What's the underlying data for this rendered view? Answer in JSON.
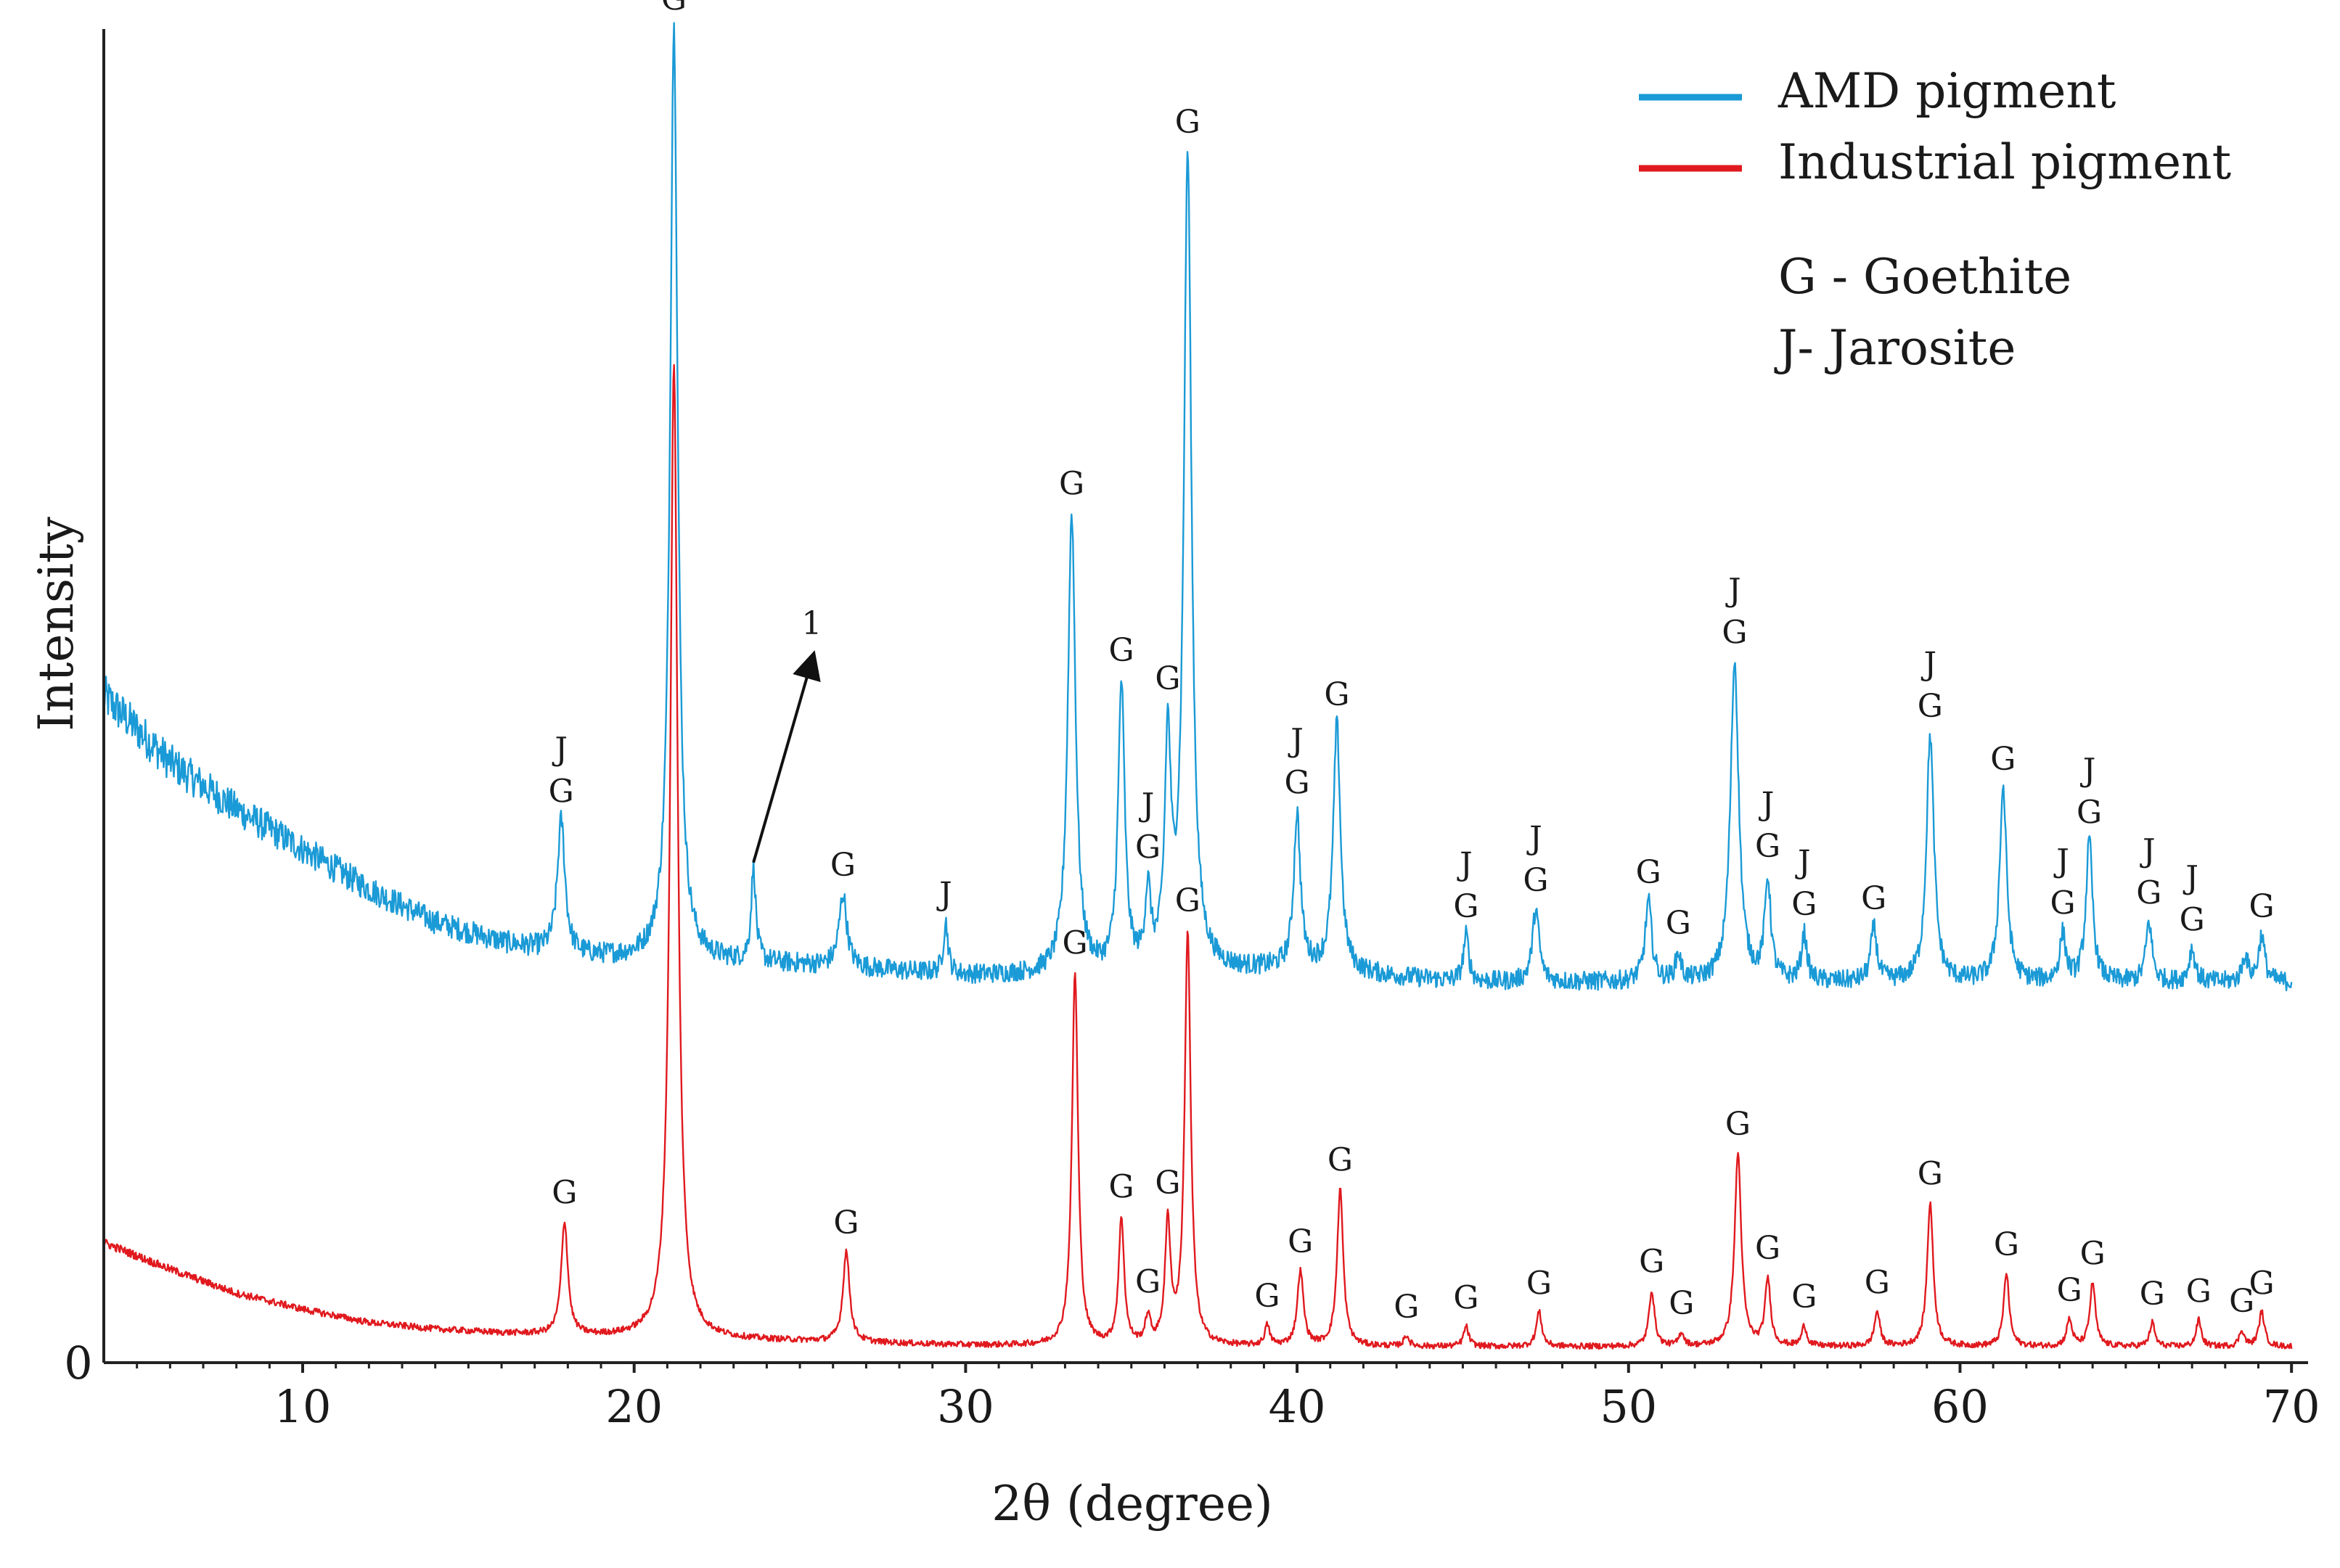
{
  "chart_data": {
    "type": "line",
    "title": "",
    "xlabel": "2θ (degree)",
    "ylabel": "Intensity",
    "xlim": [
      4,
      70.5
    ],
    "ylim": [
      0,
      100
    ],
    "x_ticks": [
      10,
      20,
      30,
      40,
      50,
      60,
      70
    ],
    "y_tick_labels": [
      {
        "value": 0,
        "label": "0"
      }
    ],
    "legend_position": "top-right",
    "legend": [
      {
        "series": "AMD pigment",
        "label": "AMD pigment",
        "color": "#1a9ad6"
      },
      {
        "series": "Industrial pigment",
        "label": "Industrial pigment",
        "color": "#e0191e"
      }
    ],
    "phase_key": [
      "G - Goethite",
      "J- Jarosite"
    ],
    "series": [
      {
        "name": "AMD pigment",
        "color": "#1a9ad6",
        "noise": 0.7,
        "baseline": [
          [
            4,
            50
          ],
          [
            6,
            45
          ],
          [
            8,
            41.5
          ],
          [
            10,
            38.5
          ],
          [
            12,
            35.5
          ],
          [
            14,
            33
          ],
          [
            16,
            31.5
          ],
          [
            18,
            30.5
          ],
          [
            20,
            30.2
          ],
          [
            25,
            29.8
          ],
          [
            30,
            29
          ],
          [
            35,
            29
          ],
          [
            40,
            29.5
          ],
          [
            45,
            28.5
          ],
          [
            50,
            28.5
          ],
          [
            55,
            28.5
          ],
          [
            60,
            28.5
          ],
          [
            65,
            28.5
          ],
          [
            70,
            28.5
          ]
        ],
        "peaks": [
          {
            "x": 17.8,
            "h": 10,
            "w": 0.28,
            "labels": [
              "J",
              "G"
            ]
          },
          {
            "x": 21.2,
            "h": 70,
            "w": 0.28,
            "labels": [
              "G"
            ]
          },
          {
            "x": 23.6,
            "h": 7,
            "w": 0.17,
            "labels": []
          },
          {
            "x": 26.3,
            "h": 5.5,
            "w": 0.28,
            "labels": [
              "G"
            ]
          },
          {
            "x": 29.4,
            "h": 3.8,
            "w": 0.17,
            "labels": [
              "J"
            ]
          },
          {
            "x": 33.2,
            "h": 34.5,
            "w": 0.28,
            "labels": [
              "G"
            ]
          },
          {
            "x": 34.7,
            "h": 21.5,
            "w": 0.24,
            "labels": [
              "G"
            ]
          },
          {
            "x": 35.5,
            "h": 5.5,
            "w": 0.2,
            "labels": [
              "J",
              "G"
            ]
          },
          {
            "x": 36.1,
            "h": 16.5,
            "w": 0.22,
            "labels": [
              "G"
            ]
          },
          {
            "x": 36.7,
            "h": 61,
            "w": 0.28,
            "labels": [
              "G"
            ]
          },
          {
            "x": 40.0,
            "h": 11.5,
            "w": 0.24,
            "labels": [
              "J",
              "G"
            ]
          },
          {
            "x": 41.2,
            "h": 18.5,
            "w": 0.26,
            "labels": [
              "G"
            ]
          },
          {
            "x": 45.1,
            "h": 3.5,
            "w": 0.2,
            "labels": [
              "J",
              "G"
            ]
          },
          {
            "x": 47.2,
            "h": 5.5,
            "w": 0.24,
            "labels": [
              "J",
              "G"
            ]
          },
          {
            "x": 50.6,
            "h": 6,
            "w": 0.24,
            "labels": [
              "G"
            ]
          },
          {
            "x": 51.5,
            "h": 2,
            "w": 0.2,
            "labels": [
              "G"
            ]
          },
          {
            "x": 53.2,
            "h": 24,
            "w": 0.3,
            "labels": [
              "J",
              "G"
            ]
          },
          {
            "x": 54.2,
            "h": 7.5,
            "w": 0.22,
            "labels": [
              "J",
              "G"
            ]
          },
          {
            "x": 55.3,
            "h": 3.5,
            "w": 0.2,
            "labels": [
              "J",
              "G"
            ]
          },
          {
            "x": 57.4,
            "h": 4,
            "w": 0.22,
            "labels": [
              "G"
            ]
          },
          {
            "x": 59.1,
            "h": 18.5,
            "w": 0.27,
            "labels": [
              "J",
              "G"
            ]
          },
          {
            "x": 61.3,
            "h": 14.5,
            "w": 0.26,
            "labels": [
              "G"
            ]
          },
          {
            "x": 63.1,
            "h": 3.5,
            "w": 0.22,
            "labels": [
              "J",
              "G"
            ]
          },
          {
            "x": 63.9,
            "h": 10.5,
            "w": 0.24,
            "labels": [
              "J",
              "G"
            ]
          },
          {
            "x": 65.7,
            "h": 4.5,
            "w": 0.22,
            "labels": [
              "J",
              "G"
            ]
          },
          {
            "x": 67.0,
            "h": 2.5,
            "w": 0.22,
            "labels": [
              "J",
              "G"
            ]
          },
          {
            "x": 68.6,
            "h": 2,
            "w": 0.2,
            "labels": []
          },
          {
            "x": 69.1,
            "h": 3.5,
            "w": 0.22,
            "labels": [
              "G"
            ]
          }
        ]
      },
      {
        "name": "Industrial pigment",
        "color": "#e0191e",
        "noise": 0.22,
        "baseline": [
          [
            4,
            9
          ],
          [
            6,
            7
          ],
          [
            8,
            5.2
          ],
          [
            10,
            4
          ],
          [
            12,
            3
          ],
          [
            14,
            2.5
          ],
          [
            16,
            2.2
          ],
          [
            18,
            2
          ],
          [
            25,
            1.6
          ],
          [
            30,
            1.3
          ],
          [
            35,
            1.2
          ],
          [
            50,
            1.2
          ],
          [
            60,
            1.2
          ],
          [
            70,
            1.2
          ]
        ],
        "peaks": [
          {
            "x": 17.9,
            "h": 8.5,
            "w": 0.24,
            "labels": [
              "G"
            ]
          },
          {
            "x": 21.2,
            "h": 73,
            "w": 0.27,
            "labels": []
          },
          {
            "x": 26.4,
            "h": 6.8,
            "w": 0.24,
            "labels": [
              "G"
            ]
          },
          {
            "x": 33.3,
            "h": 28,
            "w": 0.22,
            "labels": [
              "G"
            ]
          },
          {
            "x": 34.7,
            "h": 9.5,
            "w": 0.2,
            "labels": [
              "G"
            ]
          },
          {
            "x": 35.5,
            "h": 2,
            "w": 0.18,
            "labels": [
              "G"
            ]
          },
          {
            "x": 36.1,
            "h": 9,
            "w": 0.2,
            "labels": [
              "G"
            ]
          },
          {
            "x": 36.7,
            "h": 31,
            "w": 0.22,
            "labels": [
              "G"
            ]
          },
          {
            "x": 39.1,
            "h": 1.5,
            "w": 0.18,
            "labels": [
              "G"
            ]
          },
          {
            "x": 40.1,
            "h": 5.6,
            "w": 0.22,
            "labels": [
              "G"
            ]
          },
          {
            "x": 41.3,
            "h": 11.8,
            "w": 0.22,
            "labels": [
              "G"
            ]
          },
          {
            "x": 43.3,
            "h": 0.8,
            "w": 0.18,
            "labels": [
              "G"
            ]
          },
          {
            "x": 45.1,
            "h": 1.5,
            "w": 0.18,
            "labels": [
              "G"
            ]
          },
          {
            "x": 47.3,
            "h": 2.6,
            "w": 0.2,
            "labels": [
              "G"
            ]
          },
          {
            "x": 50.7,
            "h": 4.2,
            "w": 0.2,
            "labels": [
              "G"
            ]
          },
          {
            "x": 51.6,
            "h": 1,
            "w": 0.18,
            "labels": [
              "G"
            ]
          },
          {
            "x": 53.3,
            "h": 14.5,
            "w": 0.24,
            "labels": [
              "G"
            ]
          },
          {
            "x": 54.2,
            "h": 5,
            "w": 0.2,
            "labels": [
              "G"
            ]
          },
          {
            "x": 55.3,
            "h": 1.5,
            "w": 0.18,
            "labels": [
              "G"
            ]
          },
          {
            "x": 57.5,
            "h": 2.6,
            "w": 0.2,
            "labels": [
              "G"
            ]
          },
          {
            "x": 59.1,
            "h": 10.8,
            "w": 0.22,
            "labels": [
              "G"
            ]
          },
          {
            "x": 61.4,
            "h": 5.5,
            "w": 0.2,
            "labels": [
              "G"
            ]
          },
          {
            "x": 63.3,
            "h": 2,
            "w": 0.2,
            "labels": [
              "G"
            ]
          },
          {
            "x": 64.0,
            "h": 4.8,
            "w": 0.2,
            "labels": [
              "G"
            ]
          },
          {
            "x": 65.8,
            "h": 1.8,
            "w": 0.18,
            "labels": [
              "G"
            ]
          },
          {
            "x": 67.2,
            "h": 2,
            "w": 0.18,
            "labels": [
              "G"
            ]
          },
          {
            "x": 68.5,
            "h": 1.2,
            "w": 0.18,
            "labels": [
              "G"
            ]
          },
          {
            "x": 69.1,
            "h": 2.6,
            "w": 0.2,
            "labels": [
              "G"
            ]
          }
        ]
      }
    ],
    "annotations": [
      {
        "text": "1",
        "arrow_from": [
          23.6,
          37.5
        ],
        "arrow_to": [
          25.4,
          53
        ]
      }
    ]
  }
}
